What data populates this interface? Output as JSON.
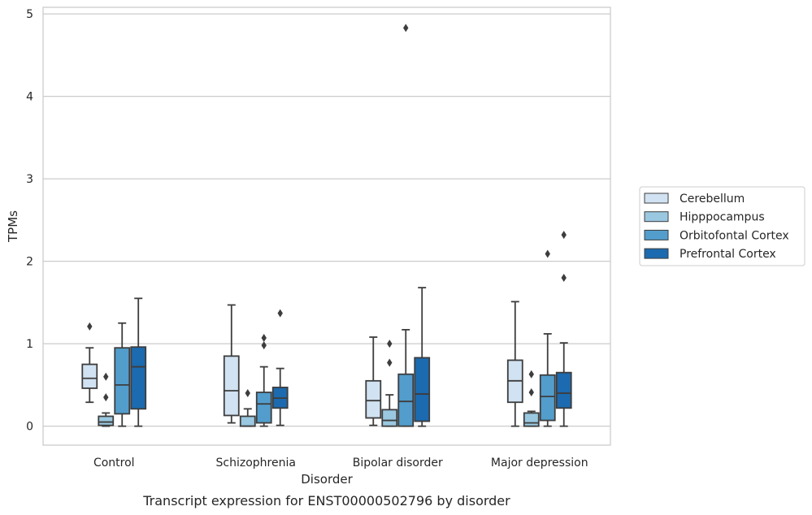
{
  "chart_data": {
    "type": "box",
    "title": "Transcript expression for ENST00000502796 by disorder",
    "xlabel": "Disorder",
    "ylabel": "TPMs",
    "ylim": [
      -0.23,
      5.08
    ],
    "yticks": [
      0,
      1,
      2,
      3,
      4,
      5
    ],
    "grid": "horizontal",
    "legend_position": "right",
    "categories": [
      "Control",
      "Schizophrenia",
      "Bipolar disorder",
      "Major depression"
    ],
    "series": [
      {
        "name": "Cerebellum",
        "color": "#d1e2f2",
        "boxes": [
          {
            "whislo": 0.29,
            "q1": 0.46,
            "med": 0.58,
            "q3": 0.75,
            "whishi": 0.95,
            "fliers": [
              1.21
            ]
          },
          {
            "whislo": 0.04,
            "q1": 0.13,
            "med": 0.43,
            "q3": 0.85,
            "whishi": 1.47,
            "fliers": []
          },
          {
            "whislo": 0.01,
            "q1": 0.1,
            "med": 0.31,
            "q3": 0.55,
            "whishi": 1.08,
            "fliers": []
          },
          {
            "whislo": 0.0,
            "q1": 0.29,
            "med": 0.55,
            "q3": 0.8,
            "whishi": 1.51,
            "fliers": []
          }
        ]
      },
      {
        "name": "Hipppocampus",
        "color": "#9ac8e0",
        "boxes": [
          {
            "whislo": 0.0,
            "q1": 0.01,
            "med": 0.05,
            "q3": 0.12,
            "whishi": 0.16,
            "fliers": [
              0.35,
              0.6
            ]
          },
          {
            "whislo": 0.0,
            "q1": 0.0,
            "med": 0.0,
            "q3": 0.12,
            "whishi": 0.21,
            "fliers": [
              0.4
            ]
          },
          {
            "whislo": 0.0,
            "q1": 0.0,
            "med": 0.07,
            "q3": 0.2,
            "whishi": 0.38,
            "fliers": [
              0.77,
              1.0
            ]
          },
          {
            "whislo": 0.0,
            "q1": 0.0,
            "med": 0.04,
            "q3": 0.16,
            "whishi": 0.18,
            "fliers": [
              0.41,
              0.63
            ]
          }
        ]
      },
      {
        "name": "Orbitofontal Cortex",
        "color": "#529dcc",
        "boxes": [
          {
            "whislo": 0.0,
            "q1": 0.15,
            "med": 0.5,
            "q3": 0.95,
            "whishi": 1.25,
            "fliers": []
          },
          {
            "whislo": 0.0,
            "q1": 0.04,
            "med": 0.27,
            "q3": 0.41,
            "whishi": 0.72,
            "fliers": [
              0.98,
              1.07
            ]
          },
          {
            "whislo": 0.0,
            "q1": 0.0,
            "med": 0.3,
            "q3": 0.63,
            "whishi": 1.17,
            "fliers": [
              4.83
            ]
          },
          {
            "whislo": 0.0,
            "q1": 0.07,
            "med": 0.36,
            "q3": 0.62,
            "whishi": 1.12,
            "fliers": [
              2.09
            ]
          }
        ]
      },
      {
        "name": "Prefrontal Cortex",
        "color": "#1c6aaf",
        "boxes": [
          {
            "whislo": 0.0,
            "q1": 0.21,
            "med": 0.72,
            "q3": 0.96,
            "whishi": 1.55,
            "fliers": []
          },
          {
            "whislo": 0.01,
            "q1": 0.22,
            "med": 0.34,
            "q3": 0.47,
            "whishi": 0.7,
            "fliers": [
              1.37
            ]
          },
          {
            "whislo": 0.0,
            "q1": 0.06,
            "med": 0.39,
            "q3": 0.83,
            "whishi": 1.68,
            "fliers": []
          },
          {
            "whislo": 0.0,
            "q1": 0.22,
            "med": 0.4,
            "q3": 0.65,
            "whishi": 1.01,
            "fliers": [
              1.8,
              2.32
            ]
          }
        ]
      }
    ]
  }
}
